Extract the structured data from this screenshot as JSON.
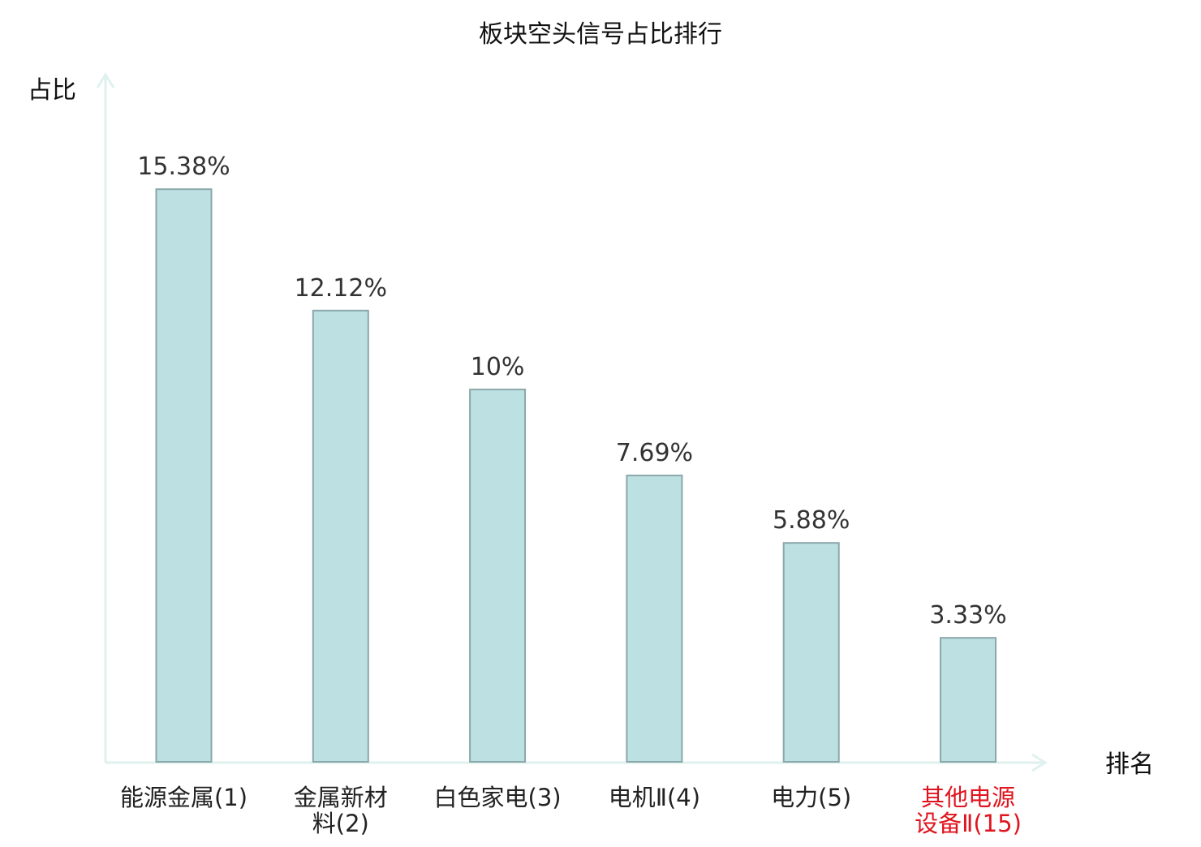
{
  "chart_data": {
    "type": "bar",
    "title": "板块空头信号占比排行",
    "xlabel": "排名",
    "ylabel": "占比",
    "categories": [
      [
        "能源金属(1)"
      ],
      [
        "金属新材",
        "料(2)"
      ],
      [
        "白色家电(3)"
      ],
      [
        "电机Ⅱ(4)"
      ],
      [
        "电力(5)"
      ],
      [
        "其他电源",
        "设备Ⅱ(15)"
      ]
    ],
    "values": [
      15.38,
      12.12,
      10,
      7.69,
      5.88,
      3.33
    ],
    "value_labels": [
      "15.38%",
      "12.12%",
      "10%",
      "7.69%",
      "5.88%",
      "3.33%"
    ],
    "highlight_index": 5,
    "ylim": [
      0,
      18.5
    ],
    "grid": false,
    "legend": "none"
  },
  "colors": {
    "bar_fill": "#bde0e3",
    "bar_stroke": "#8aa7aa",
    "axis": "#dff1ee",
    "text": "#222222",
    "value_text": "#333333",
    "highlight": "#e0141e"
  }
}
